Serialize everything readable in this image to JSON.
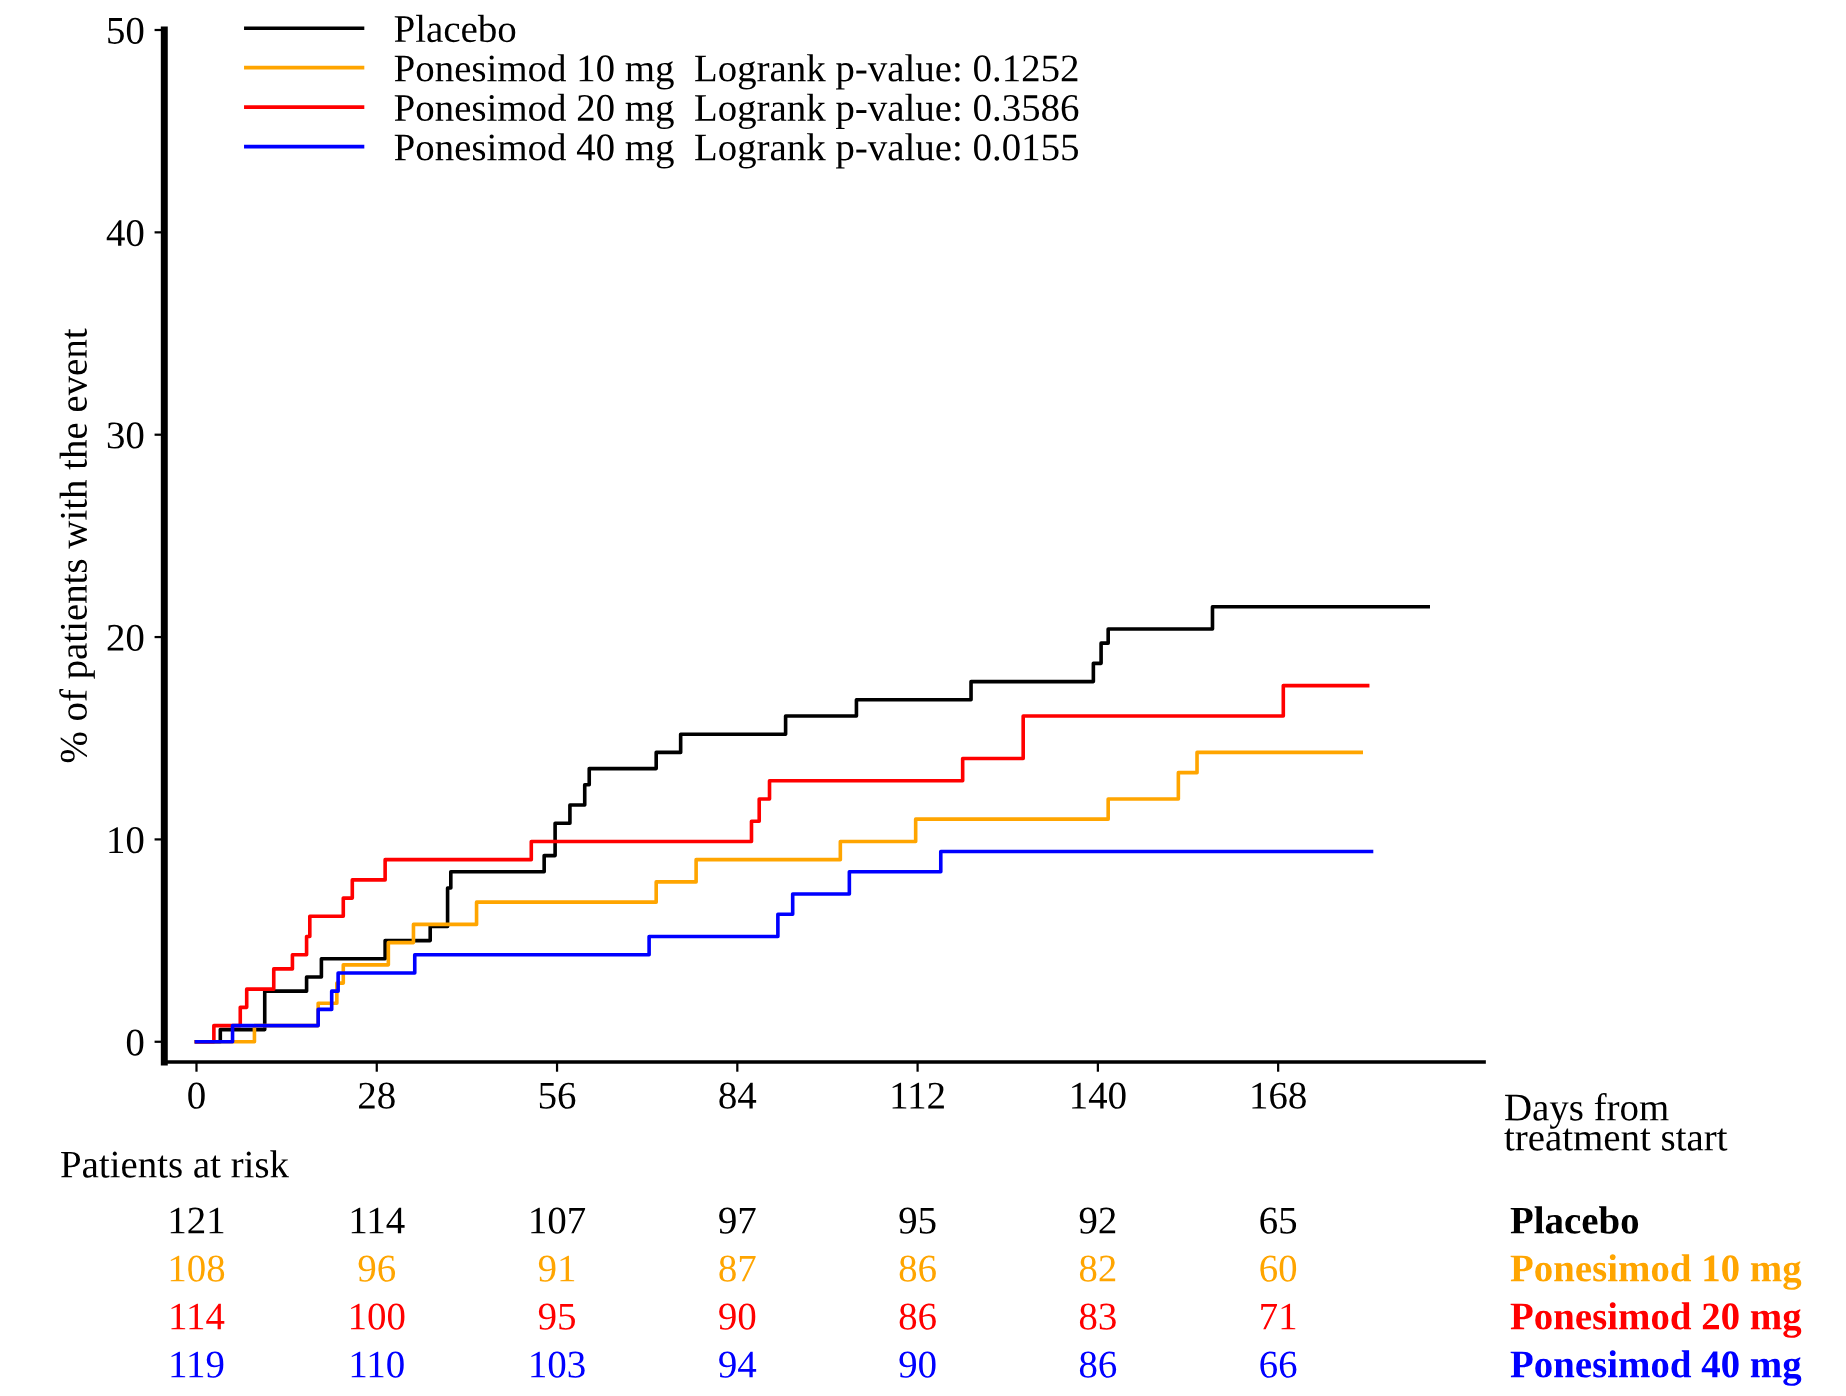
{
  "chart_data": {
    "type": "step",
    "xlabel": "Days from\ntreatment start",
    "ylabel": "% of patients with the event",
    "xlim": [
      -5,
      200
    ],
    "ylim": [
      -1,
      50
    ],
    "xticks": [
      0,
      28,
      56,
      84,
      112,
      140,
      168
    ],
    "yticks": [
      0,
      10,
      20,
      30,
      40,
      50
    ],
    "grid": false,
    "legend": "top left",
    "marker": "none",
    "line_style": "solid",
    "series": [
      {
        "name": "Placebo",
        "color": "#000000",
        "x": [
          0,
          3.7,
          10.6,
          17.1,
          19.4,
          29.3,
          36.3,
          39,
          39.5,
          54,
          55.7,
          58,
          60.3,
          61,
          71.4,
          75.2,
          91.5,
          102.5,
          120.3,
          139.3,
          140.5,
          141.6,
          157.8,
          191.3
        ],
        "values": [
          0,
          0.6,
          2.5,
          3.2,
          4.1,
          5.0,
          5.7,
          7.6,
          8.4,
          9.2,
          10.8,
          11.7,
          12.7,
          13.5,
          14.3,
          15.2,
          16.1,
          16.9,
          17.8,
          18.7,
          19.7,
          20.4,
          21.5,
          21.5
        ]
      },
      {
        "name": "Ponesimod 10 mg  Logrank p-value: 0.1252",
        "color": "#ffa500",
        "x": [
          0,
          9,
          18.9,
          21.8,
          22.8,
          29.8,
          33.7,
          43.5,
          71.4,
          77.6,
          100,
          111.7,
          141.6,
          152.5,
          155.4,
          180.9
        ],
        "values": [
          0,
          0.8,
          1.9,
          2.9,
          3.8,
          4.9,
          5.8,
          6.9,
          7.9,
          9.0,
          9.9,
          11.0,
          12.0,
          13.3,
          14.3,
          14.3
        ]
      },
      {
        "name": "Ponesimod 20 mg  Logrank p-value: 0.3586",
        "color": "#ff0000",
        "x": [
          0,
          2.7,
          6.8,
          7.8,
          12,
          14.9,
          17.1,
          17.6,
          22.8,
          24.2,
          29.3,
          52,
          86.2,
          87.4,
          89,
          119,
          128.4,
          168.8,
          181.9
        ],
        "values": [
          0,
          0.8,
          1.7,
          2.6,
          3.6,
          4.3,
          5.2,
          6.2,
          7.1,
          8.0,
          9.0,
          9.9,
          10.9,
          12.0,
          12.9,
          14.0,
          16.1,
          17.6,
          17.6
        ]
      },
      {
        "name": "Ponesimod 40 mg  Logrank p-value: 0.0155",
        "color": "#0000ff",
        "x": [
          0,
          5.6,
          18.9,
          21,
          22,
          33.9,
          70.3,
          90.3,
          92.6,
          101.4,
          115.6,
          182.5
        ],
        "values": [
          0,
          0.8,
          1.6,
          2.5,
          3.4,
          4.3,
          5.2,
          6.3,
          7.3,
          8.4,
          9.4,
          9.4
        ]
      }
    ],
    "annotations": [
      "Patients at risk",
      "121",
      "114",
      "107",
      "97",
      "95",
      "92",
      "65",
      "Placebo",
      "108",
      "96",
      "91",
      "87",
      "86",
      "82",
      "60",
      "Ponesimod 10 mg",
      "114",
      "100",
      "95",
      "90",
      "86",
      "83",
      "71",
      "Ponesimod 20 mg",
      "119",
      "110",
      "103",
      "94",
      "90",
      "86",
      "66",
      "Ponesimod 40 mg"
    ]
  }
}
